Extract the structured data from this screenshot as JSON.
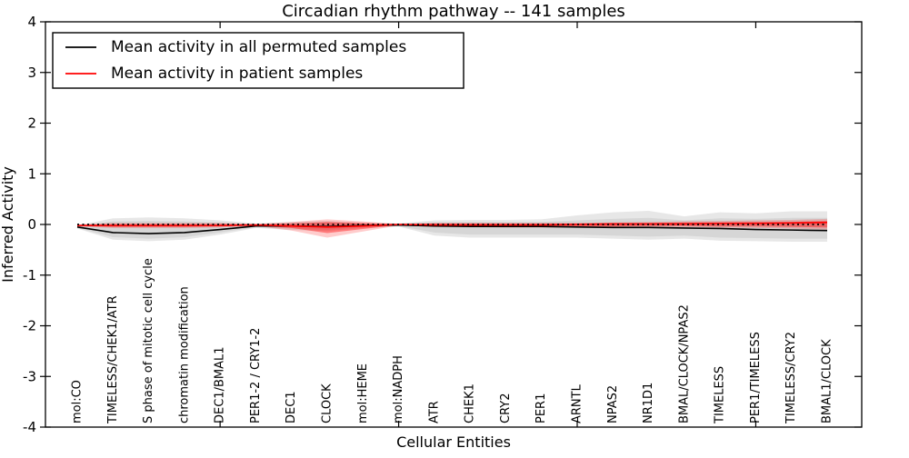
{
  "title": "Circadian rhythm pathway -- 141 samples",
  "axes": {
    "ylabel": "Inferred Activity",
    "xlabel": "Cellular Entities",
    "yticks": [
      4,
      3,
      2,
      1,
      0,
      -1,
      -2,
      -3,
      -4
    ],
    "yticklabels": [
      "4",
      "3",
      "2",
      "1",
      "0",
      "-1",
      "-2",
      "-3",
      "-4"
    ],
    "ylim": [
      -4,
      4
    ]
  },
  "legend": {
    "items": [
      {
        "label": "Mean activity in all permuted samples",
        "color": "#000000"
      },
      {
        "label": "Mean activity in patient samples",
        "color": "#ff0000"
      }
    ]
  },
  "chart_data": {
    "type": "line",
    "title": "Circadian rhythm pathway -- 141 samples",
    "xlabel": "Cellular Entities",
    "ylabel": "Inferred Activity",
    "ylim": [
      -4,
      4
    ],
    "grid": false,
    "legend_position": "upper left",
    "categories": [
      "mol:CO",
      "TIMELESS/CHEK1/ATR",
      "S phase of mitotic cell cycle",
      "chromatin modification",
      "DEC1/BMAL1",
      "PER1-2 / CRY1-2",
      "DEC1",
      "CLOCK",
      "mol:HEME",
      "mol:NADPH",
      "ATR",
      "CHEK1",
      "CRY2",
      "PER1",
      "ARNTL",
      "NPAS2",
      "NR1D1",
      "BMAL/CLOCK/NPAS2",
      "TIMELESS",
      "PER1/TIMELESS",
      "TIMELESS/CRY2",
      "BMAL1/CLOCK"
    ],
    "xticks_at_category_index": [
      4,
      9,
      14,
      19
    ],
    "series": [
      {
        "name": "Mean activity in all permuted samples",
        "color": "#000000",
        "style": "solid",
        "values": [
          -0.05,
          -0.16,
          -0.18,
          -0.16,
          -0.1,
          -0.03,
          -0.03,
          -0.04,
          -0.02,
          -0.01,
          -0.03,
          -0.04,
          -0.04,
          -0.04,
          -0.05,
          -0.06,
          -0.06,
          -0.07,
          -0.08,
          -0.1,
          -0.11,
          -0.12
        ]
      },
      {
        "name": "Mean activity in patient samples",
        "color": "#ff0000",
        "style": "solid",
        "values": [
          -0.02,
          -0.02,
          -0.02,
          -0.02,
          -0.02,
          -0.01,
          -0.03,
          -0.05,
          -0.03,
          0.0,
          -0.01,
          -0.01,
          -0.01,
          -0.01,
          0.0,
          0.01,
          0.01,
          0.01,
          0.02,
          0.02,
          0.03,
          0.04
        ]
      },
      {
        "name": "zero-reference",
        "color": "#000000",
        "style": "dotted",
        "values": [
          0,
          0,
          0,
          0,
          0,
          0,
          0,
          0,
          0,
          0,
          0,
          0,
          0,
          0,
          0,
          0,
          0,
          0,
          0,
          0,
          0,
          0
        ]
      }
    ],
    "bands": [
      {
        "name": "permuted-range-outer",
        "color": "#b0b0b0",
        "opacity": 0.3,
        "upper": [
          -0.02,
          0.12,
          0.14,
          0.12,
          0.08,
          0.02,
          0.05,
          0.07,
          0.03,
          0.02,
          0.08,
          0.09,
          0.09,
          0.1,
          0.18,
          0.24,
          0.27,
          0.16,
          0.24,
          0.22,
          0.26,
          0.26
        ],
        "lower": [
          -0.08,
          -0.3,
          -0.33,
          -0.3,
          -0.2,
          -0.07,
          -0.11,
          -0.13,
          -0.07,
          -0.04,
          -0.22,
          -0.26,
          -0.26,
          -0.26,
          -0.26,
          -0.28,
          -0.3,
          -0.28,
          -0.32,
          -0.33,
          -0.34,
          -0.34
        ]
      },
      {
        "name": "permuted-range-inner",
        "color": "#b0b0b0",
        "opacity": 0.3,
        "upper": [
          -0.03,
          0.06,
          0.07,
          0.06,
          0.04,
          0.0,
          0.02,
          0.03,
          0.01,
          0.01,
          0.04,
          0.05,
          0.05,
          0.05,
          0.08,
          0.11,
          0.13,
          0.08,
          0.12,
          0.11,
          0.13,
          0.13
        ],
        "lower": [
          -0.07,
          -0.25,
          -0.28,
          -0.25,
          -0.16,
          -0.05,
          -0.08,
          -0.1,
          -0.05,
          -0.03,
          -0.16,
          -0.2,
          -0.2,
          -0.2,
          -0.2,
          -0.22,
          -0.24,
          -0.22,
          -0.26,
          -0.27,
          -0.28,
          -0.28
        ]
      },
      {
        "name": "patient-range-outer",
        "color": "#ff0000",
        "opacity": 0.2,
        "upper": [
          0.0,
          0.03,
          0.03,
          0.03,
          0.03,
          0.01,
          0.05,
          0.1,
          0.06,
          0.01,
          0.03,
          0.03,
          0.03,
          0.03,
          0.03,
          0.04,
          0.05,
          0.06,
          0.07,
          0.08,
          0.09,
          0.11
        ],
        "lower": [
          -0.04,
          -0.07,
          -0.07,
          -0.07,
          -0.06,
          -0.03,
          -0.12,
          -0.26,
          -0.14,
          -0.02,
          -0.05,
          -0.05,
          -0.06,
          -0.06,
          -0.06,
          -0.06,
          -0.05,
          -0.05,
          -0.06,
          -0.07,
          -0.08,
          -0.1
        ]
      },
      {
        "name": "patient-range-inner",
        "color": "#ff0000",
        "opacity": 0.4,
        "upper": [
          -0.01,
          0.01,
          0.01,
          0.01,
          0.01,
          0.0,
          0.02,
          0.05,
          0.03,
          0.01,
          0.02,
          0.02,
          0.02,
          0.02,
          0.02,
          0.03,
          0.03,
          0.04,
          0.04,
          0.05,
          0.05,
          0.07
        ],
        "lower": [
          -0.03,
          -0.05,
          -0.05,
          -0.05,
          -0.04,
          -0.02,
          -0.07,
          -0.17,
          -0.09,
          -0.01,
          -0.03,
          -0.03,
          -0.04,
          -0.04,
          -0.04,
          -0.04,
          -0.03,
          -0.03,
          -0.04,
          -0.04,
          -0.05,
          -0.06
        ]
      }
    ]
  }
}
